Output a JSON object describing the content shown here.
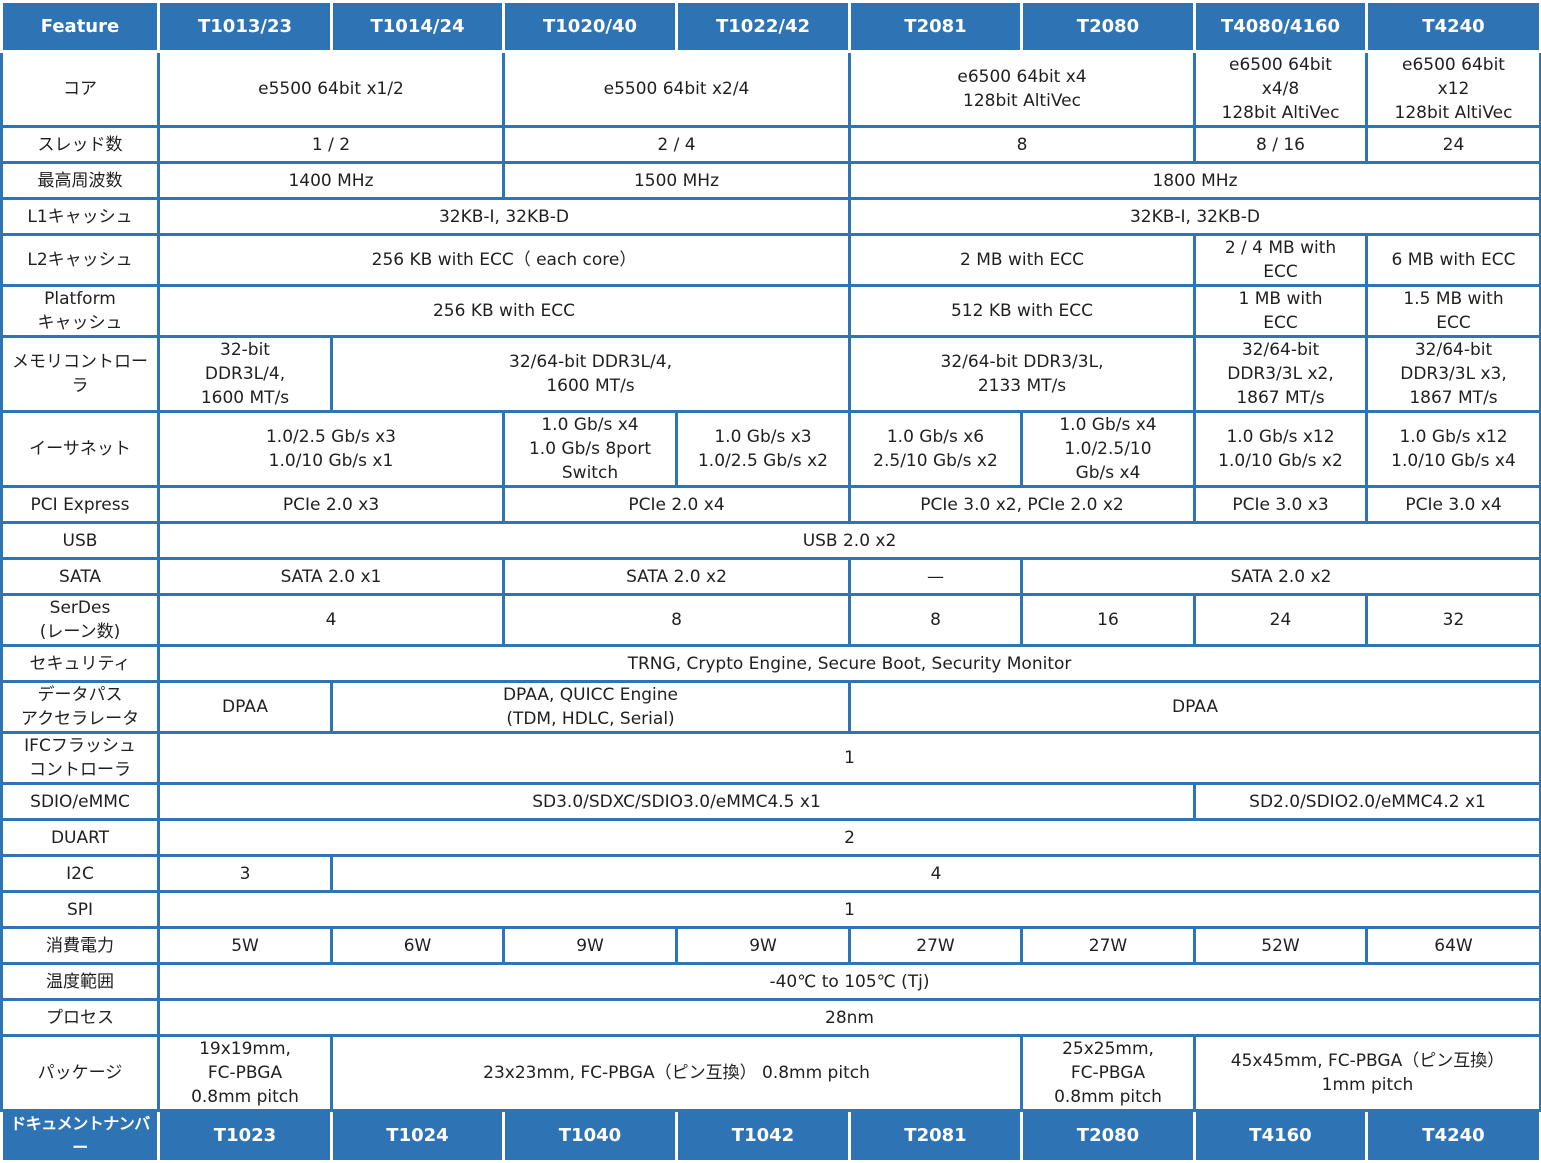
{
  "header": {
    "feature": "Feature",
    "devices": [
      "T1013/23",
      "T1014/24",
      "T1020/40",
      "T1022/42",
      "T2081",
      "T2080",
      "T4080/4160",
      "T4240"
    ]
  },
  "rows": [
    {
      "label": "コア",
      "cells": [
        {
          "text": "e5500 64bit x1/2",
          "span": 2
        },
        {
          "text": "e5500 64bit x2/4",
          "span": 2
        },
        {
          "text": "e6500 64bit x4\n128bit AltiVec",
          "span": 2
        },
        {
          "text": "e6500 64bit\nx4/8\n128bit AltiVec",
          "span": 1
        },
        {
          "text": "e6500 64bit\nx12\n128bit AltiVec",
          "span": 1
        }
      ]
    },
    {
      "label": "スレッド数",
      "cells": [
        {
          "text": "1 / 2",
          "span": 2
        },
        {
          "text": "2 / 4",
          "span": 2
        },
        {
          "text": "8",
          "span": 2
        },
        {
          "text": "8 / 16",
          "span": 1
        },
        {
          "text": "24",
          "span": 1
        }
      ]
    },
    {
      "label": "最高周波数",
      "cells": [
        {
          "text": "1400 MHz",
          "span": 2
        },
        {
          "text": "1500 MHz",
          "span": 2
        },
        {
          "text": "1800 MHz",
          "span": 4
        }
      ]
    },
    {
      "label": "L1キャッシュ",
      "cells": [
        {
          "text": "32KB-I, 32KB-D",
          "span": 4
        },
        {
          "text": "32KB-I, 32KB-D",
          "span": 4
        }
      ]
    },
    {
      "label": "L2キャッシュ",
      "cells": [
        {
          "text": "256 KB with ECC（ each core）",
          "span": 4
        },
        {
          "text": "2 MB with ECC",
          "span": 2
        },
        {
          "text": "2 / 4 MB with\nECC",
          "span": 1
        },
        {
          "text": "6 MB with ECC",
          "span": 1
        }
      ]
    },
    {
      "label": "Platform\nキャッシュ",
      "cells": [
        {
          "text": "256 KB with ECC",
          "span": 4
        },
        {
          "text": "512 KB with ECC",
          "span": 2
        },
        {
          "text": "1 MB with\nECC",
          "span": 1
        },
        {
          "text": "1.5 MB with\nECC",
          "span": 1
        }
      ]
    },
    {
      "label": "メモリコントローラ",
      "cells": [
        {
          "text": "32-bit\nDDR3L/4,\n1600 MT/s",
          "span": 1
        },
        {
          "text": "32/64-bit DDR3L/4,\n1600 MT/s",
          "span": 3
        },
        {
          "text": "32/64-bit DDR3/3L,\n2133 MT/s",
          "span": 2
        },
        {
          "text": "32/64-bit\nDDR3/3L x2,\n1867 MT/s",
          "span": 1
        },
        {
          "text": "32/64-bit\nDDR3/3L x3,\n1867 MT/s",
          "span": 1
        }
      ]
    },
    {
      "label": "イーサネット",
      "cells": [
        {
          "text": "1.0/2.5 Gb/s x3\n1.0/10 Gb/s x1",
          "span": 2
        },
        {
          "text": "1.0 Gb/s x4\n1.0 Gb/s 8port\nSwitch",
          "span": 1
        },
        {
          "text": "1.0 Gb/s x3\n1.0/2.5 Gb/s x2",
          "span": 1
        },
        {
          "text": "1.0 Gb/s x6\n2.5/10 Gb/s x2",
          "span": 1
        },
        {
          "text": "1.0 Gb/s x4\n1.0/2.5/10\nGb/s x4",
          "span": 1
        },
        {
          "text": "1.0 Gb/s x12\n1.0/10 Gb/s x2",
          "span": 1
        },
        {
          "text": "1.0 Gb/s x12\n1.0/10 Gb/s x4",
          "span": 1
        }
      ]
    },
    {
      "label": "PCI Express",
      "cells": [
        {
          "text": "PCIe 2.0 x3",
          "span": 2
        },
        {
          "text": "PCIe 2.0 x4",
          "span": 2
        },
        {
          "text": "PCIe 3.0 x2,  PCIe 2.0 x2",
          "span": 2
        },
        {
          "text": "PCIe 3.0 x3",
          "span": 1
        },
        {
          "text": "PCIe 3.0 x4",
          "span": 1
        }
      ]
    },
    {
      "label": "USB",
      "cells": [
        {
          "text": "USB 2.0 x2",
          "span": 8
        }
      ]
    },
    {
      "label": "SATA",
      "cells": [
        {
          "text": "SATA 2.0 x1",
          "span": 2
        },
        {
          "text": "SATA 2.0 x2",
          "span": 2
        },
        {
          "text": "—",
          "span": 1
        },
        {
          "text": "SATA 2.0 x2",
          "span": 3
        }
      ]
    },
    {
      "label": "SerDes\n(レーン数)",
      "cells": [
        {
          "text": "4",
          "span": 2
        },
        {
          "text": "8",
          "span": 2
        },
        {
          "text": "8",
          "span": 1
        },
        {
          "text": "16",
          "span": 1
        },
        {
          "text": "24",
          "span": 1
        },
        {
          "text": "32",
          "span": 1
        }
      ]
    },
    {
      "label": "セキュリティ",
      "cells": [
        {
          "text": "TRNG, Crypto Engine, Secure Boot, Security Monitor",
          "span": 8
        }
      ]
    },
    {
      "label": "データパス\nアクセラレータ",
      "cells": [
        {
          "text": "DPAA",
          "span": 1
        },
        {
          "text": "DPAA, QUICC Engine\n(TDM, HDLC, Serial)",
          "span": 3
        },
        {
          "text": "DPAA",
          "span": 4
        }
      ]
    },
    {
      "label": "IFCフラッシュ\nコントローラ",
      "cells": [
        {
          "text": "1",
          "span": 8
        }
      ]
    },
    {
      "label": "SDIO/eMMC",
      "cells": [
        {
          "text": "SD3.0/SDXC/SDIO3.0/eMMC4.5 x1",
          "span": 6
        },
        {
          "text": "SD2.0/SDIO2.0/eMMC4.2 x1",
          "span": 2
        }
      ]
    },
    {
      "label": "DUART",
      "cells": [
        {
          "text": "2",
          "span": 8
        }
      ]
    },
    {
      "label": "I2C",
      "cells": [
        {
          "text": "3",
          "span": 1
        },
        {
          "text": "4",
          "span": 7
        }
      ]
    },
    {
      "label": "SPI",
      "cells": [
        {
          "text": "1",
          "span": 8
        }
      ]
    },
    {
      "label": "消費電力",
      "cells": [
        {
          "text": "5W",
          "span": 1
        },
        {
          "text": "6W",
          "span": 1
        },
        {
          "text": "9W",
          "span": 1
        },
        {
          "text": "9W",
          "span": 1
        },
        {
          "text": "27W",
          "span": 1
        },
        {
          "text": "27W",
          "span": 1
        },
        {
          "text": "52W",
          "span": 1
        },
        {
          "text": "64W",
          "span": 1
        }
      ]
    },
    {
      "label": "温度範囲",
      "cells": [
        {
          "text": "-40℃ to 105℃ (Tj)",
          "span": 8
        }
      ]
    },
    {
      "label": "プロセス",
      "cells": [
        {
          "text": "28nm",
          "span": 8
        }
      ]
    },
    {
      "label": "パッケージ",
      "cells": [
        {
          "text": "19x19mm,\nFC-PBGA\n0.8mm pitch",
          "span": 1
        },
        {
          "text": "23x23mm, FC-PBGA（ピン互換） 0.8mm pitch",
          "span": 4
        },
        {
          "text": "25x25mm,\nFC-PBGA\n0.8mm pitch",
          "span": 1
        },
        {
          "text": "45x45mm, FC-PBGA（ピン互換）\n1mm pitch",
          "span": 2
        }
      ]
    }
  ],
  "footer": {
    "label": "ドキュメントナンバー",
    "documents": [
      "T1023",
      "T1024",
      "T1040",
      "T1042",
      "T2081",
      "T2080",
      "T4160",
      "T4240"
    ]
  }
}
